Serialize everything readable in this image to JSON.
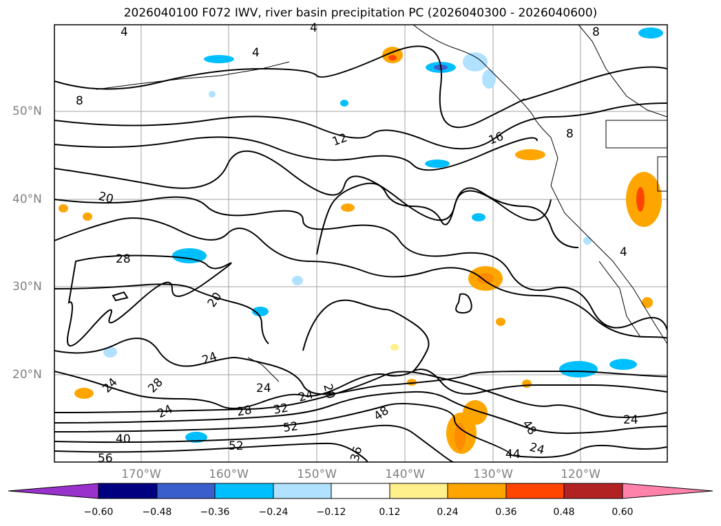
{
  "title": "2026040100 F072 IWV, river basin precipitation PC (2026040300 - 2026040600)",
  "lat_labels": [
    "50°N",
    "40°N",
    "30°N",
    "20°N"
  ],
  "lon_labels": [
    "170°W",
    "160°W",
    "150°W",
    "140°W",
    "130°W",
    "120°W"
  ],
  "contour_labels": [
    "4",
    "8",
    "4",
    "4",
    "12",
    "16",
    "8",
    "8",
    "4",
    "20",
    "28",
    "20",
    "24",
    "24",
    "24",
    "28",
    "24",
    "24",
    "20",
    "28",
    "32",
    "48",
    "52",
    "40",
    "56",
    "52",
    "36",
    "48",
    "44",
    "24"
  ],
  "colorbar": {
    "colors": [
      "#9932cc",
      "#000080",
      "#3a5fcd",
      "#00bfff",
      "#b0e2ff",
      "#ffffff",
      "#fff08c",
      "#ffa500",
      "#ff4500",
      "#b22222",
      "#ff82ab"
    ],
    "ticks": [
      "−0.60",
      "−0.48",
      "−0.36",
      "−0.24",
      "−0.12",
      "0.12",
      "0.24",
      "0.36",
      "0.48",
      "0.60"
    ]
  }
}
